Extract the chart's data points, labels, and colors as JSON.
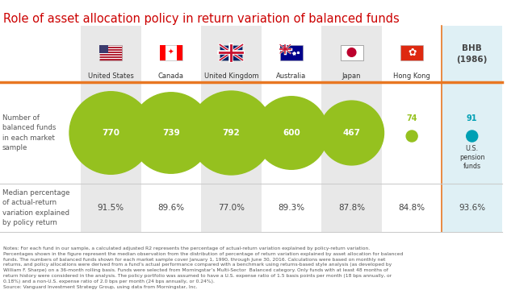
{
  "title": "Role of asset allocation policy in return variation of balanced funds",
  "title_color": "#cc0000",
  "title_fontsize": 10.5,
  "columns": [
    "United States",
    "Canada",
    "United Kingdom",
    "Australia",
    "Japan",
    "Hong Kong",
    "BHB\n(1986)"
  ],
  "fund_counts": [
    770,
    739,
    792,
    600,
    467,
    74,
    91
  ],
  "median_pcts": [
    "91.5%",
    "89.6%",
    "77.0%",
    "89.3%",
    "87.8%",
    "84.8%",
    "93.6%"
  ],
  "bubble_color_main": "#95c11f",
  "bubble_color_hk": "#95c11f",
  "bubble_color_bhb": "#00a0b4",
  "col_bg_colors": [
    "#e8e8e8",
    "#ffffff",
    "#e8e8e8",
    "#ffffff",
    "#e8e8e8",
    "#ffffff",
    "#dff0f5"
  ],
  "row1_label": "Number of\nbalanced funds\nin each market\nsample",
  "row2_label": "Median percentage\nof actual-return\nvariation explained\nby policy return",
  "notes_text": "Notes: For each fund in our sample, a calculated adjusted R2 represents the percentage of actual-return variation explained by policy-return variation.\nPercentages shown in the figure represent the median observation from the distribution of percentage of return variation explained by asset allocation for balanced\nfunds. The numbers of balanced funds shown for each market sample cover January 1, 1990, through June 30, 2016. Calculations were based on monthly net\nreturns, and policy allocations were derived from a fund’s actual performance compared with a benchmark using returns-based style analysis (as developed by\nWilliam F. Sharpe) on a 36-month rolling basis. Funds were selected from Morningstar’s Multi-Sector  Balanced category. Only funds with at least 48 months of\nreturn history were considered in the analysis. The policy portfolio was assumed to have a U.S. expense ratio of 1.5 basis points per month (18 bps annually, or\n0.18%) and a non-U.S. expense ratio of 2.0 bps per month (24 bps annually, or 0.24%).\nSource: Vanguard Investment Strategy Group, using data from Morningstar, Inc.",
  "us_pension_label": "U.S.\npension\nfunds",
  "separator_color": "#e87722",
  "separator_color2": "#cccccc",
  "background_color": "#ffffff"
}
